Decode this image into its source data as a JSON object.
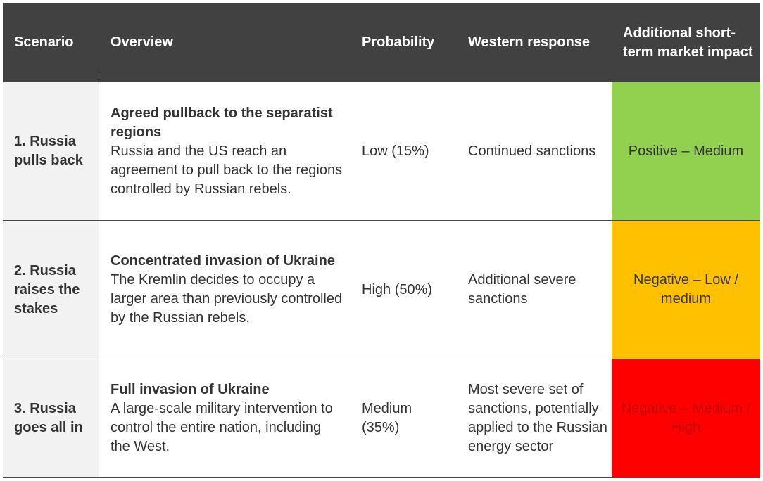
{
  "header": {
    "scenario": "Scenario",
    "overview": "Overview",
    "probability": "Probability",
    "western_response": "Western response",
    "market_impact": "Additional short-term market impact"
  },
  "rows": [
    {
      "scenario": "1. Russia pulls back",
      "overview_title": "Agreed pullback to the separatist regions",
      "overview_text": "Russia and the US reach an agreement to pull back to the regions controlled by Russian rebels.",
      "probability": "Low (15%)",
      "response": "Continued sanctions",
      "impact": "Positive – Medium",
      "impact_color": "#92d050"
    },
    {
      "scenario": "2. Russia raises the stakes",
      "overview_title": "Concentrated invasion of Ukraine",
      "overview_text": "The Kremlin decides to occupy a larger area than previously controlled by the Russian rebels.",
      "probability": "High (50%)",
      "response": "Additional severe sanctions",
      "impact": "Negative – Low / medium",
      "impact_color": "#ffc000"
    },
    {
      "scenario": "3. Russia goes all in",
      "overview_title": "Full invasion of Ukraine",
      "overview_text": "A large-scale military intervention to control the entire nation, including the West.",
      "probability": "Medium (35%)",
      "response": "Most severe set of sanctions, potentially applied to the Russian energy sector",
      "impact": "Negative – Medium / High",
      "impact_color": "#ff0000"
    }
  ]
}
